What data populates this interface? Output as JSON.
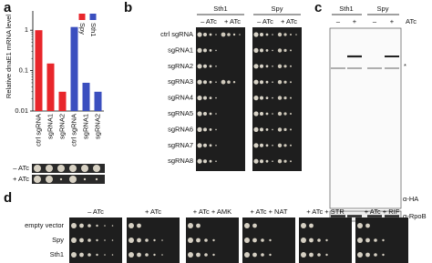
{
  "panel_a": {
    "label": "a",
    "chart_data": {
      "type": "bar",
      "y_label": "Relative dnaE1 mRNA level",
      "categories": [
        "ctrl sgRNA",
        "sgRNA1",
        "sgRNA2",
        "ctrl sgRNA",
        "sgRNA1",
        "sgRNA2"
      ],
      "values": [
        1.0,
        0.15,
        0.03,
        1.2,
        0.05,
        0.03
      ],
      "colors": [
        "#e8262b",
        "#e8262b",
        "#e8262b",
        "#3b4fbf",
        "#3b4fbf",
        "#3b4fbf"
      ],
      "legend": [
        {
          "name": "Spy",
          "color": "#e8262b"
        },
        {
          "name": "Sth1",
          "color": "#3b4fbf"
        }
      ],
      "log_scale": true,
      "ylim": [
        0.01,
        3
      ],
      "yticks": [
        0.01,
        0.1,
        1
      ]
    },
    "strip_labels": [
      "– ATc",
      "+ ATc"
    ]
  },
  "panel_b": {
    "label": "b",
    "groups": [
      "Sth1",
      "Spy"
    ],
    "conditions": [
      "– ATc",
      "+ ATc",
      "– ATc",
      "+ ATc"
    ],
    "rows": [
      "ctrl sgRNA",
      "sgRNA1",
      "sgRNA2",
      "sgRNA3",
      "sgRNA4",
      "sgRNA5",
      "sgRNA6",
      "sgRNA7",
      "sgRNA8"
    ]
  },
  "panel_c": {
    "label": "c",
    "groups": [
      "Sth1",
      "Spy"
    ],
    "lanes": [
      "–",
      "+",
      "–",
      "+"
    ],
    "lane_title": "ATc",
    "asterisk": "*",
    "blot_labels": [
      "α-HA",
      "α-RpoB"
    ]
  },
  "panel_d": {
    "label": "d",
    "rows": [
      "empty vector",
      "Spy",
      "Sth1"
    ],
    "conditions": [
      "– ATc",
      "+ ATc",
      "+ ATc + AMK",
      "+ ATc + NAT",
      "+ ATc + STR",
      "+ ATc + RIF"
    ]
  }
}
